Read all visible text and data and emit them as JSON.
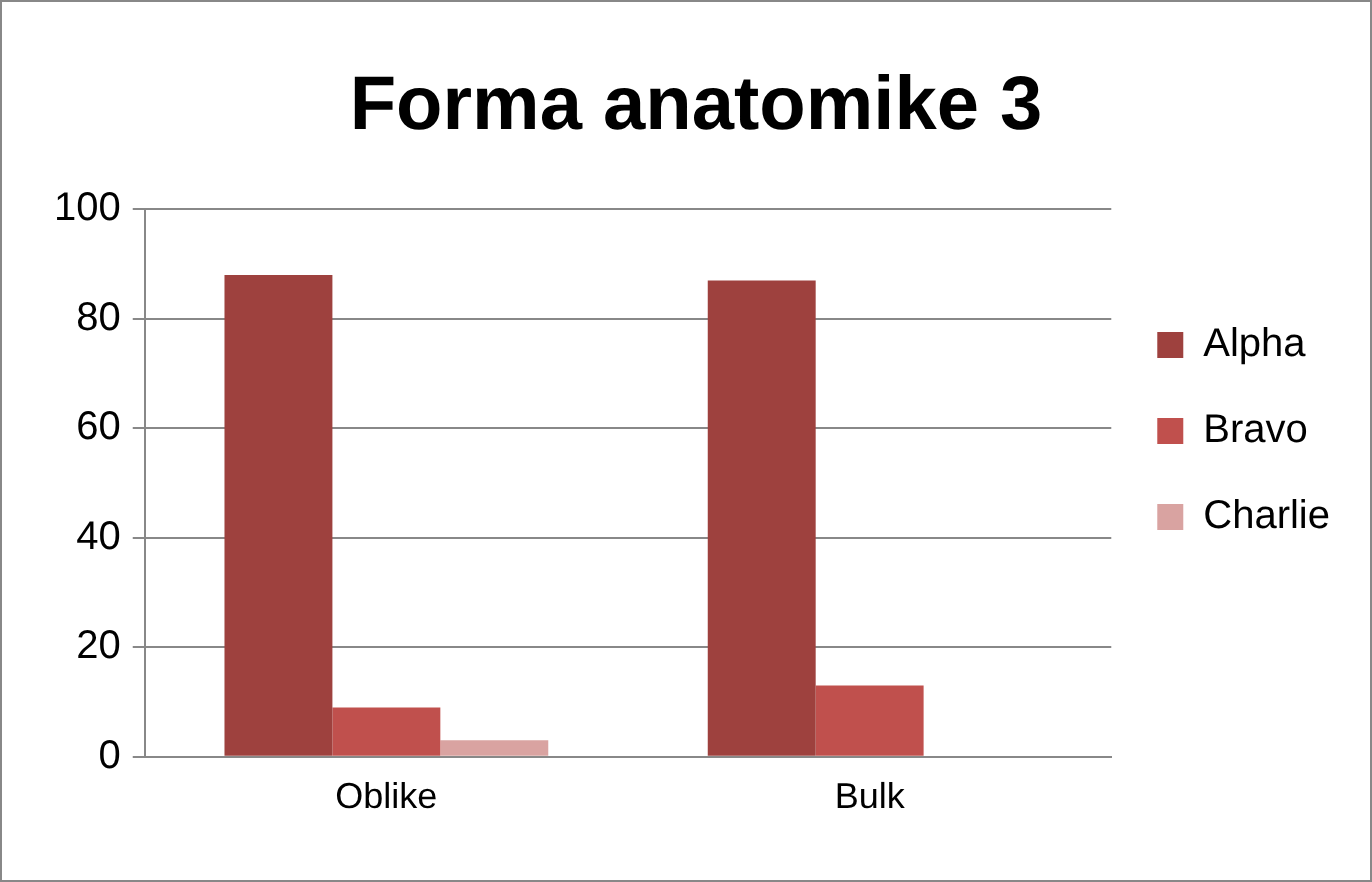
{
  "chart_data": {
    "type": "bar",
    "title": "Forma anatomike 3",
    "categories": [
      "Oblike",
      "Bulk"
    ],
    "series": [
      {
        "name": "Alpha",
        "color": "#9e413e",
        "values": [
          88,
          87
        ]
      },
      {
        "name": "Bravo",
        "color": "#c0504d",
        "values": [
          9,
          13
        ]
      },
      {
        "name": "Charlie",
        "color": "#d9a3a1",
        "values": [
          3,
          0
        ]
      }
    ],
    "ylim": [
      0,
      100
    ],
    "yticks": [
      0,
      20,
      40,
      60,
      80,
      100
    ],
    "grid": "y",
    "legend": "right"
  }
}
